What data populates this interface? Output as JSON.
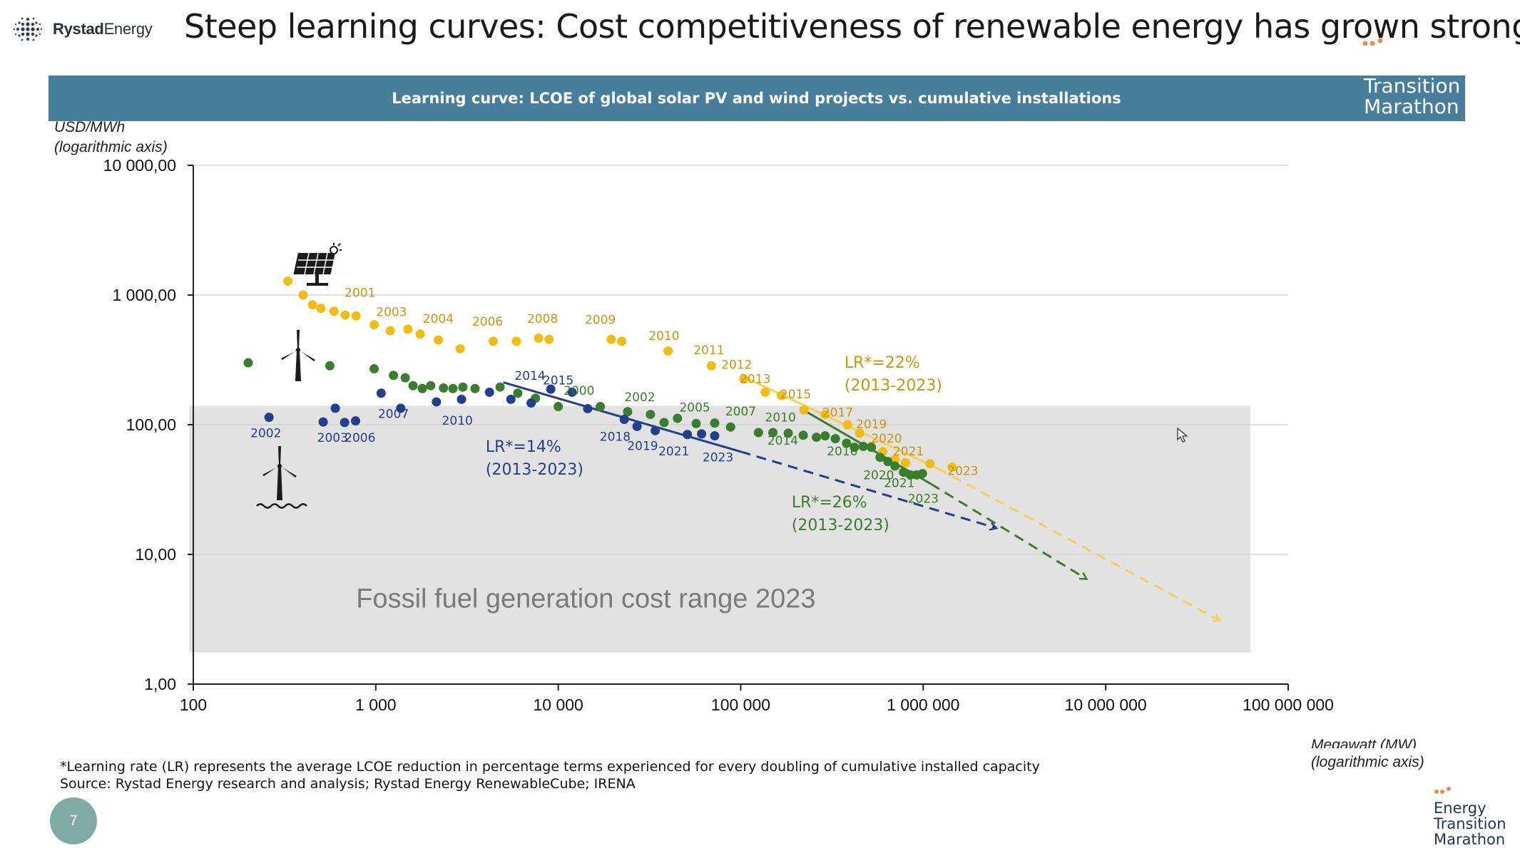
{
  "header": {
    "logo_brand_bold": "Rystad",
    "logo_brand_light": "Energy",
    "title": "Steep learning curves: Cost competitiveness of renewable energy has grown stronger"
  },
  "banner": {
    "title": "Learning curve: LCOE of global solar PV and wind projects vs. cumulative installations",
    "etm_line1": "Transition",
    "etm_line2": "Marathon"
  },
  "colors": {
    "solar": "#f2bd10",
    "solar_label": "#c8960c",
    "wind_onshore": "#3a7d2c",
    "wind_offshore": "#213f8c",
    "fossil_band": "#e2e2e2",
    "banner": "#477e9c"
  },
  "icons": [
    "solar-panel-icon",
    "wind-turbine-icon",
    "offshore-wind-turbine-icon"
  ],
  "chart_data": {
    "type": "scatter",
    "ylabel_line1": "USD/MWh",
    "ylabel_line2": "(logarithmic axis)",
    "xlabel_line1": "Megawatt (MW)",
    "xlabel_line2": "(logarithmic axis)",
    "x_scale": "log",
    "y_scale": "log",
    "xlim": [
      100,
      100000000
    ],
    "ylim": [
      1,
      10000
    ],
    "grid": "horizontal",
    "x_ticks": [
      {
        "value": 100,
        "label": "100"
      },
      {
        "value": 1000,
        "label": "1 000"
      },
      {
        "value": 10000,
        "label": "10 000"
      },
      {
        "value": 100000,
        "label": "100 000"
      },
      {
        "value": 1000000,
        "label": "1 000 000"
      },
      {
        "value": 10000000,
        "label": "10 000 000"
      },
      {
        "value": 100000000,
        "label": "100 000 000"
      }
    ],
    "y_ticks": [
      {
        "value": 1,
        "label": "1,00"
      },
      {
        "value": 10,
        "label": "10,00"
      },
      {
        "value": 100,
        "label": "100,00"
      },
      {
        "value": 1000,
        "label": "1 000,00"
      },
      {
        "value": 10000,
        "label": "10 000,00"
      }
    ],
    "fossil_band": {
      "label": "Fossil fuel generation cost range 2023",
      "y_min": 1.75,
      "y_max": 140,
      "x_min": 95,
      "x_max": 62000000
    },
    "series": [
      {
        "key": "solar",
        "points": [
          {
            "x": 330,
            "y": 1280
          },
          {
            "x": 400,
            "y": 1000
          },
          {
            "x": 450,
            "y": 840
          },
          {
            "x": 500,
            "y": 790
          },
          {
            "x": 590,
            "y": 750
          },
          {
            "x": 680,
            "y": 700
          },
          {
            "x": 780,
            "y": 690
          },
          {
            "x": 980,
            "y": 590
          },
          {
            "x": 1200,
            "y": 530
          },
          {
            "x": 1500,
            "y": 545
          },
          {
            "x": 1750,
            "y": 500
          },
          {
            "x": 2200,
            "y": 450
          },
          {
            "x": 2900,
            "y": 385
          },
          {
            "x": 4400,
            "y": 440
          },
          {
            "x": 5900,
            "y": 440
          },
          {
            "x": 7800,
            "y": 465
          },
          {
            "x": 8900,
            "y": 455
          },
          {
            "x": 19500,
            "y": 455
          },
          {
            "x": 22300,
            "y": 440
          },
          {
            "x": 40000,
            "y": 370
          },
          {
            "x": 69000,
            "y": 285
          },
          {
            "x": 104000,
            "y": 225
          },
          {
            "x": 136000,
            "y": 178
          },
          {
            "x": 167000,
            "y": 168
          },
          {
            "x": 222000,
            "y": 130
          },
          {
            "x": 290000,
            "y": 120
          },
          {
            "x": 385000,
            "y": 100
          },
          {
            "x": 448000,
            "y": 86
          },
          {
            "x": 518000,
            "y": 68
          },
          {
            "x": 600000,
            "y": 62
          },
          {
            "x": 700000,
            "y": 54
          },
          {
            "x": 800000,
            "y": 51
          },
          {
            "x": 1090000,
            "y": 50
          },
          {
            "x": 1440000,
            "y": 47
          }
        ],
        "labels": [
          {
            "text": "2001",
            "x": 820,
            "y": 970
          },
          {
            "text": "2003",
            "x": 1220,
            "y": 690
          },
          {
            "text": "2004",
            "x": 2200,
            "y": 610
          },
          {
            "text": "2006",
            "x": 4100,
            "y": 580
          },
          {
            "text": "2008",
            "x": 8200,
            "y": 610
          },
          {
            "text": "2009",
            "x": 17000,
            "y": 600
          },
          {
            "text": "2010",
            "x": 38000,
            "y": 450
          },
          {
            "text": "2011",
            "x": 67000,
            "y": 350
          },
          {
            "text": "2012",
            "x": 95000,
            "y": 270
          },
          {
            "text": "2013",
            "x": 120000,
            "y": 210
          },
          {
            "text": "2015",
            "x": 200000,
            "y": 160
          },
          {
            "text": "2017",
            "x": 340000,
            "y": 116
          },
          {
            "text": "2019",
            "x": 520000,
            "y": 94
          },
          {
            "text": "2020",
            "x": 630000,
            "y": 73
          },
          {
            "text": "2021",
            "x": 830000,
            "y": 58
          },
          {
            "text": "2023",
            "x": 1650000,
            "y": 41
          }
        ]
      },
      {
        "key": "wind_onshore",
        "points": [
          {
            "x": 200,
            "y": 300
          },
          {
            "x": 560,
            "y": 285
          },
          {
            "x": 980,
            "y": 270
          },
          {
            "x": 1250,
            "y": 240
          },
          {
            "x": 1450,
            "y": 230
          },
          {
            "x": 1600,
            "y": 200
          },
          {
            "x": 1800,
            "y": 190
          },
          {
            "x": 2000,
            "y": 200
          },
          {
            "x": 2350,
            "y": 192
          },
          {
            "x": 2650,
            "y": 190
          },
          {
            "x": 3000,
            "y": 195
          },
          {
            "x": 3500,
            "y": 190
          },
          {
            "x": 4800,
            "y": 195
          },
          {
            "x": 6000,
            "y": 175
          },
          {
            "x": 7500,
            "y": 160
          },
          {
            "x": 10000,
            "y": 138
          },
          {
            "x": 17000,
            "y": 138
          },
          {
            "x": 24000,
            "y": 126
          },
          {
            "x": 32000,
            "y": 120
          },
          {
            "x": 38000,
            "y": 104
          },
          {
            "x": 45000,
            "y": 112
          },
          {
            "x": 57000,
            "y": 102
          },
          {
            "x": 72000,
            "y": 103
          },
          {
            "x": 88000,
            "y": 96
          },
          {
            "x": 125000,
            "y": 87
          },
          {
            "x": 150000,
            "y": 87
          },
          {
            "x": 182000,
            "y": 86
          },
          {
            "x": 220000,
            "y": 83
          },
          {
            "x": 260000,
            "y": 80
          },
          {
            "x": 290000,
            "y": 82
          },
          {
            "x": 330000,
            "y": 78
          },
          {
            "x": 380000,
            "y": 72
          },
          {
            "x": 420000,
            "y": 67
          },
          {
            "x": 470000,
            "y": 68
          },
          {
            "x": 520000,
            "y": 67
          },
          {
            "x": 580000,
            "y": 56
          },
          {
            "x": 640000,
            "y": 52
          },
          {
            "x": 700000,
            "y": 48
          },
          {
            "x": 780000,
            "y": 43
          },
          {
            "x": 850000,
            "y": 41
          },
          {
            "x": 920000,
            "y": 41
          },
          {
            "x": 990000,
            "y": 42
          }
        ],
        "labels": [
          {
            "text": "2000",
            "x": 13000,
            "y": 170
          },
          {
            "text": "2002",
            "x": 28000,
            "y": 152
          },
          {
            "text": "2005",
            "x": 56000,
            "y": 126
          },
          {
            "text": "2007",
            "x": 100000,
            "y": 118
          },
          {
            "text": "2010",
            "x": 165000,
            "y": 106
          },
          {
            "text": "2014",
            "x": 170000,
            "y": 70
          },
          {
            "text": "2016",
            "x": 360000,
            "y": 58
          },
          {
            "text": "2020",
            "x": 570000,
            "y": 38
          },
          {
            "text": "2021",
            "x": 740000,
            "y": 33
          },
          {
            "text": "2023",
            "x": 1000000,
            "y": 25
          }
        ]
      },
      {
        "key": "wind_offshore",
        "points": [
          {
            "x": 260,
            "y": 114
          },
          {
            "x": 515,
            "y": 105
          },
          {
            "x": 600,
            "y": 134
          },
          {
            "x": 675,
            "y": 104
          },
          {
            "x": 775,
            "y": 107
          },
          {
            "x": 1070,
            "y": 175
          },
          {
            "x": 1370,
            "y": 134
          },
          {
            "x": 2150,
            "y": 150
          },
          {
            "x": 2950,
            "y": 157
          },
          {
            "x": 4200,
            "y": 178
          },
          {
            "x": 5500,
            "y": 157
          },
          {
            "x": 7100,
            "y": 147
          },
          {
            "x": 9100,
            "y": 188
          },
          {
            "x": 11900,
            "y": 178
          },
          {
            "x": 14500,
            "y": 133
          },
          {
            "x": 23000,
            "y": 110
          },
          {
            "x": 27000,
            "y": 97
          },
          {
            "x": 34000,
            "y": 90
          },
          {
            "x": 51000,
            "y": 84
          },
          {
            "x": 61000,
            "y": 85
          },
          {
            "x": 72000,
            "y": 82
          }
        ],
        "labels": [
          {
            "text": "2002",
            "x": 250,
            "y": 80
          },
          {
            "text": "2003",
            "x": 580,
            "y": 74
          },
          {
            "text": "2006",
            "x": 820,
            "y": 74
          },
          {
            "text": "2007",
            "x": 1250,
            "y": 113
          },
          {
            "text": "2010",
            "x": 2800,
            "y": 100
          },
          {
            "text": "2014",
            "x": 7000,
            "y": 222
          },
          {
            "text": "2015",
            "x": 10000,
            "y": 205
          },
          {
            "text": "2018",
            "x": 20500,
            "y": 75
          },
          {
            "text": "2019",
            "x": 29000,
            "y": 64
          },
          {
            "text": "2021",
            "x": 43000,
            "y": 58
          },
          {
            "text": "2023",
            "x": 75000,
            "y": 52
          }
        ]
      }
    ],
    "trend_lines": [
      {
        "key": "solar",
        "solid": [
          [
            100000,
            240
          ],
          [
            1200000,
            46
          ]
        ],
        "dashed": [
          [
            1200000,
            46
          ],
          [
            42000000,
            3.1
          ]
        ]
      },
      {
        "key": "wind_onshore",
        "solid": [
          [
            220000,
            130
          ],
          [
            1100000,
            35
          ]
        ],
        "dashed": [
          [
            1100000,
            35
          ],
          [
            7800000,
            6.5
          ]
        ]
      },
      {
        "key": "wind_offshore",
        "solid": [
          [
            5000,
            212
          ],
          [
            100000,
            62
          ]
        ],
        "dashed": [
          [
            100000,
            62
          ],
          [
            2500000,
            16
          ]
        ]
      }
    ],
    "annotations": [
      {
        "key": "solar",
        "line1": "LR*=22%",
        "line2": "(2013-2023)",
        "x": 370000,
        "y": 275
      },
      {
        "key": "wind_offshore",
        "line1": "LR*=14%",
        "line2": "(2013-2023)",
        "x": 4000,
        "y": 62
      },
      {
        "key": "wind_onshore",
        "line1": "LR*=26%",
        "line2": "(2013-2023)",
        "x": 190000,
        "y": 23
      }
    ]
  },
  "footnote": {
    "line1": "*Learning rate (LR) represents the average LCOE reduction in percentage terms experienced for every doubling of cumulative installed capacity",
    "line2": "Source: Rystad Energy research and analysis; Rystad Energy RenewableCube; IRENA"
  },
  "page": {
    "number": "7"
  },
  "etm_bottom": {
    "line1": "Energy",
    "line2": "Transition",
    "line3": "Marathon"
  }
}
